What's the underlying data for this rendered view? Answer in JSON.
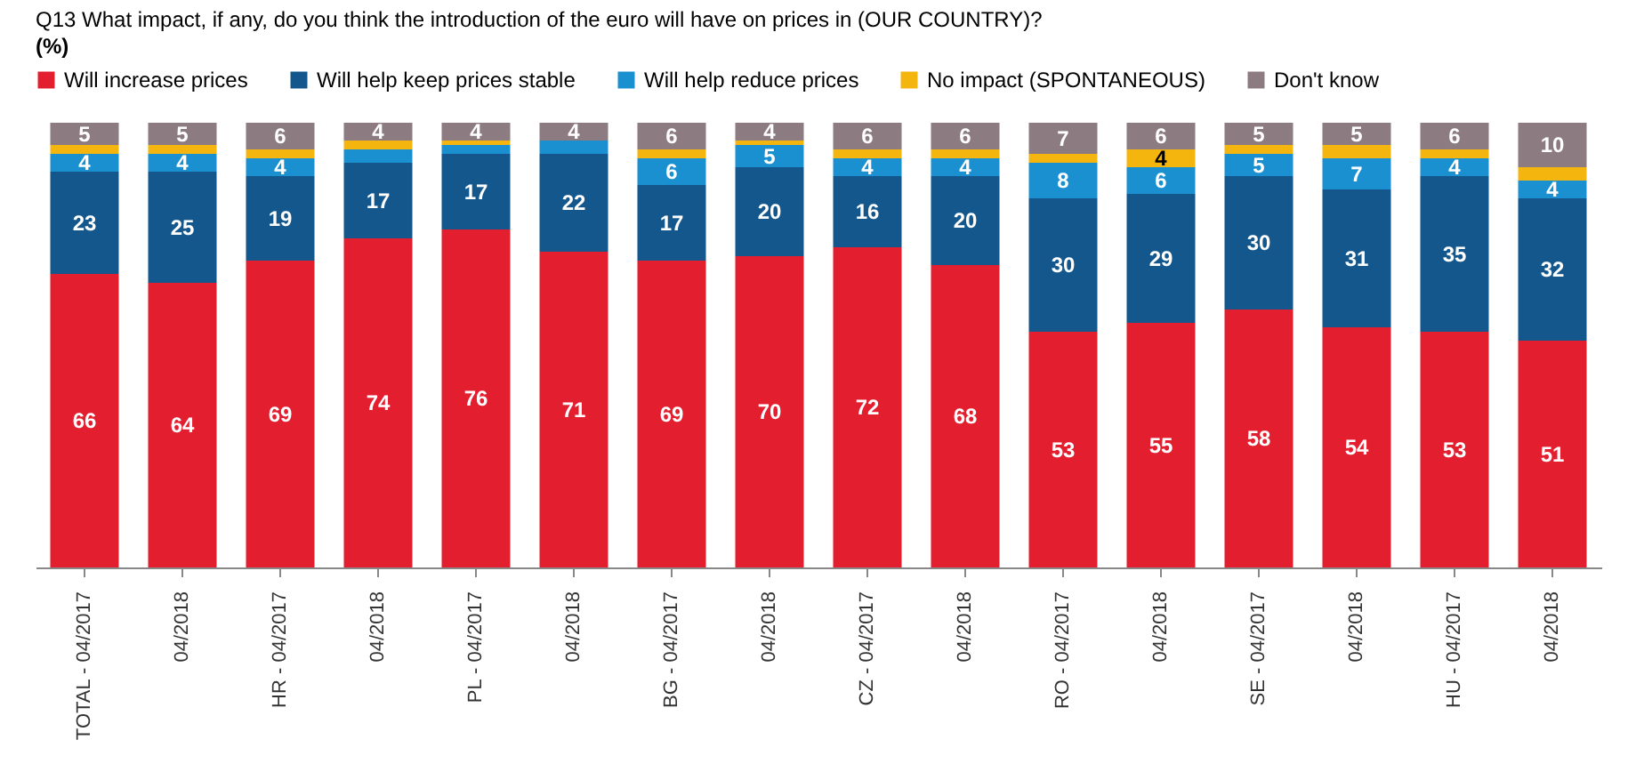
{
  "chart_data": {
    "type": "bar",
    "stacked": true,
    "title": "Q13   What impact, if any, do you think the introduction of the euro will have on prices in (OUR COUNTRY)?",
    "subtitle": "(%)",
    "legend": "top",
    "categories": [
      "TOTAL - 04/2017",
      "04/2018",
      "HR - 04/2017",
      "04/2018",
      "PL - 04/2017",
      "04/2018",
      "BG - 04/2017",
      "04/2018",
      "CZ - 04/2017",
      "04/2018",
      "RO - 04/2017",
      "04/2018",
      "SE - 04/2017",
      "04/2018",
      "HU - 04/2017",
      "04/2018"
    ],
    "series": [
      {
        "name": "Will increase prices",
        "color": "#e31e2f",
        "values": [
          66,
          64,
          69,
          74,
          76,
          71,
          69,
          70,
          72,
          68,
          53,
          55,
          58,
          54,
          53,
          51
        ],
        "value_labels": [
          "66",
          "64",
          "69",
          "74",
          "76",
          "71",
          "69",
          "70",
          "72",
          "68",
          "53",
          "55",
          "58",
          "54",
          "53",
          "51"
        ]
      },
      {
        "name": "Will help keep prices stable",
        "color": "#14578c",
        "values": [
          23,
          25,
          19,
          17,
          17,
          22,
          17,
          20,
          16,
          20,
          30,
          29,
          30,
          31,
          35,
          32
        ],
        "value_labels": [
          "23",
          "25",
          "19",
          "17",
          "17",
          "22",
          "17",
          "20",
          "16",
          "20",
          "30",
          "29",
          "30",
          "31",
          "35",
          "32"
        ]
      },
      {
        "name": "Will help reduce prices",
        "color": "#1a90d0",
        "values": [
          4,
          4,
          4,
          3,
          2,
          3,
          6,
          5,
          4,
          4,
          8,
          6,
          5,
          7,
          4,
          4
        ],
        "value_labels": [
          "4",
          "4",
          "4",
          null,
          null,
          null,
          "6",
          "5",
          "4",
          "4",
          "8",
          "6",
          "5",
          "7",
          "4",
          "4"
        ]
      },
      {
        "name": "No impact (SPONTANEOUS)",
        "color": "#f5b50f",
        "values": [
          2,
          2,
          2,
          2,
          1,
          0,
          2,
          1,
          2,
          2,
          2,
          4,
          2,
          3,
          2,
          3
        ],
        "value_labels": [
          null,
          null,
          null,
          null,
          null,
          null,
          null,
          null,
          null,
          null,
          null,
          "4",
          null,
          null,
          null,
          null
        ]
      },
      {
        "name": "Don't know",
        "color": "#8c7b80",
        "values": [
          5,
          5,
          6,
          4,
          4,
          4,
          6,
          4,
          6,
          6,
          7,
          6,
          5,
          5,
          6,
          10
        ],
        "value_labels": [
          "5",
          "5",
          "6",
          "4",
          "4",
          "4",
          "6",
          "4",
          "6",
          "6",
          "7",
          "6",
          "5",
          "5",
          "6",
          "10"
        ]
      }
    ]
  }
}
